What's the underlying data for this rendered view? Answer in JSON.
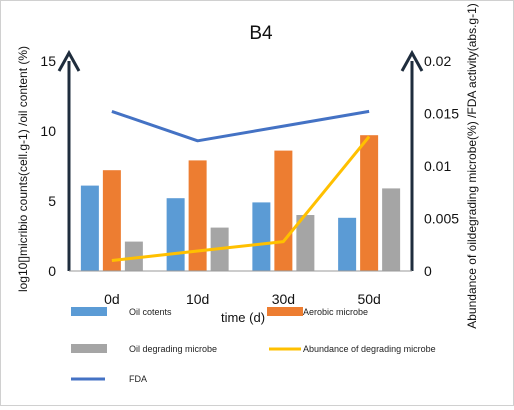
{
  "chart_data": {
    "type": "bar",
    "title": "B4",
    "categories": [
      "0d",
      "10d",
      "30d",
      "50d"
    ],
    "xlabel": "time (d)",
    "ylabel_left": "log10[]micribio counts(cell.g-1) /oil content (%)",
    "ylabel_right": "Abundance of oildegrading microbe(%) /FDA activity(abs.g-1)",
    "ylim_left": [
      0,
      15
    ],
    "ylim_right": [
      0,
      0.02
    ],
    "yticks_left": [
      0,
      5,
      10,
      15
    ],
    "yticks_right": [
      0,
      0.005,
      0.01,
      0.015,
      0.02
    ],
    "yticks_right_labels": [
      "0",
      "0.005",
      "0.01",
      "0.015",
      "0.02"
    ],
    "series": [
      {
        "name": "Oil cotents",
        "type": "bar",
        "axis": "left",
        "color": "#5b9bd5",
        "values": [
          6.1,
          5.2,
          4.9,
          3.8
        ]
      },
      {
        "name": "Aerobic microbe",
        "type": "bar",
        "axis": "left",
        "color": "#ed7d31",
        "values": [
          7.2,
          7.9,
          8.6,
          9.7
        ]
      },
      {
        "name": "Oil degrading microbe",
        "type": "bar",
        "axis": "left",
        "color": "#a5a5a5",
        "values": [
          2.1,
          3.1,
          4.0,
          5.9
        ]
      },
      {
        "name": "Abundance of degrading microbe",
        "type": "line",
        "axis": "right",
        "color": "#ffc000",
        "values": [
          0.001,
          0.0019,
          0.0028,
          0.0128
        ]
      },
      {
        "name": "FDA",
        "type": "line",
        "axis": "right",
        "color": "#4472c4",
        "values": [
          0.0152,
          0.0124,
          0.0138,
          0.0152
        ]
      }
    ],
    "grid": false
  }
}
